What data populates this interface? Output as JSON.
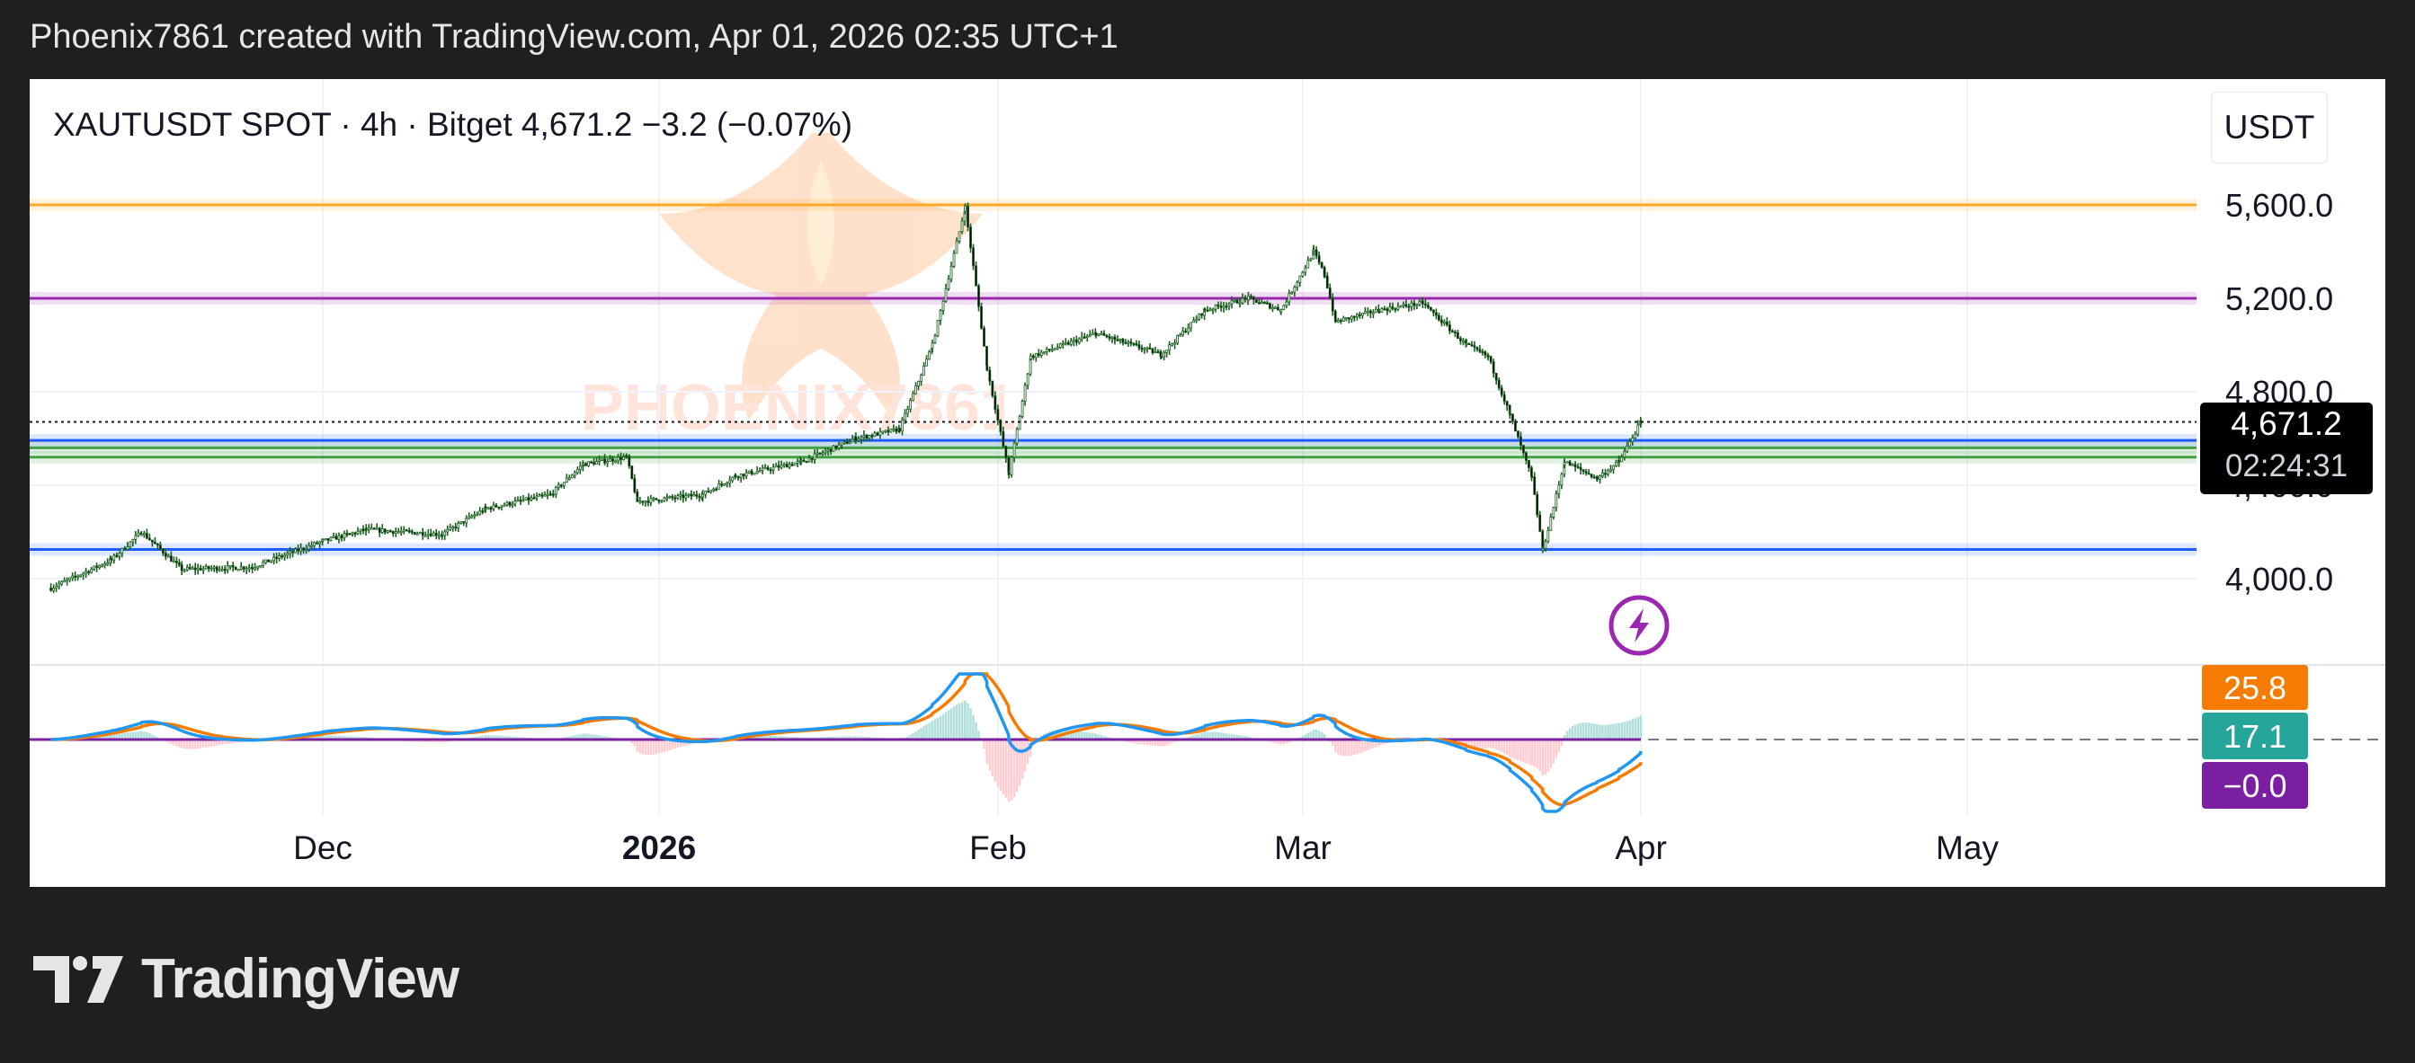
{
  "header": {
    "snapshot_text": "Phoenix7861 created with TradingView.com, Apr 01, 2026 02:35 UTC+1"
  },
  "symbol_bar": {
    "symbol": "XAUTUSDT SPOT",
    "interval": "4h",
    "exchange": "Bitget",
    "last_price": "4,671.2",
    "change": "−3.2",
    "change_pct": "(−0.07%)",
    "text": "XAUTUSDT SPOT · 4h · Bitget  4,671.2  −3.2 (−0.07%)"
  },
  "currency_button": {
    "label": "USDT"
  },
  "watermark": {
    "text": "PHOENIX7861"
  },
  "price_scale": {
    "labels": [
      "5,600.0",
      "5,200.0",
      "4,800.0",
      "4,400.0",
      "4,000.0"
    ],
    "current_price_label": "4,671.2",
    "countdown_label": "02:24:31"
  },
  "time_axis": {
    "labels": [
      {
        "text": "Dec",
        "bold": false
      },
      {
        "text": "2026",
        "bold": true
      },
      {
        "text": "Feb",
        "bold": false
      },
      {
        "text": "Mar",
        "bold": false
      },
      {
        "text": "Apr",
        "bold": false
      },
      {
        "text": "May",
        "bold": false
      }
    ]
  },
  "indicator_badges": [
    {
      "text": "25.8",
      "color": "#f57c00"
    },
    {
      "text": "17.1",
      "color": "#26a69a"
    },
    {
      "text": "−0.0",
      "color": "#7b1fa2"
    }
  ],
  "footer": {
    "brand": "TradingView"
  },
  "colors": {
    "candle": "#1b5e20",
    "orange_level": "#ffa726",
    "purple_level": "#9c27b0",
    "blue_level": "#1e5bff",
    "green_level": "#43a047",
    "macd_blue": "#2196f3",
    "macd_orange": "#f57c00",
    "signal_purple": "#7b1fa2"
  },
  "chart_data": {
    "type": "candlestick",
    "symbol": "XAUTUSDT SPOT",
    "interval": "4h",
    "exchange": "Bitget",
    "y_axis_ticks": [
      5600,
      5200,
      4800,
      4400,
      4000
    ],
    "ylim": [
      3940,
      5700
    ],
    "x_axis_ticks": [
      "Dec",
      "2026",
      "Feb",
      "Mar",
      "Apr",
      "May"
    ],
    "price_path": [
      [
        "Nov 04",
        3960
      ],
      [
        "Nov 10",
        4080
      ],
      [
        "Nov 13",
        4200
      ],
      [
        "Nov 17",
        4040
      ],
      [
        "Nov 24",
        4050
      ],
      [
        "Dec 01",
        4160
      ],
      [
        "Dec 05",
        4210
      ],
      [
        "Dec 12",
        4190
      ],
      [
        "Dec 16",
        4300
      ],
      [
        "Dec 22",
        4360
      ],
      [
        "Dec 25",
        4490
      ],
      [
        "Dec 29",
        4520
      ],
      [
        "Dec 30",
        4330
      ],
      [
        "Jan 05",
        4360
      ],
      [
        "Jan 08",
        4440
      ],
      [
        "Jan 14",
        4500
      ],
      [
        "Jan 19",
        4600
      ],
      [
        "Jan 23",
        4640
      ],
      [
        "Jan 26",
        5000
      ],
      [
        "Jan 29",
        5590
      ],
      [
        "Jan 31",
        4900
      ],
      [
        "Feb 02",
        4450
      ],
      [
        "Feb 04",
        4950
      ],
      [
        "Feb 10",
        5050
      ],
      [
        "Feb 16",
        4960
      ],
      [
        "Feb 20",
        5150
      ],
      [
        "Feb 24",
        5200
      ],
      [
        "Feb 27",
        5150
      ],
      [
        "Mar 02",
        5400
      ],
      [
        "Mar 03",
        5300
      ],
      [
        "Mar 04",
        5100
      ],
      [
        "Mar 08",
        5150
      ],
      [
        "Mar 12",
        5180
      ],
      [
        "Mar 16",
        5000
      ],
      [
        "Mar 18",
        4950
      ],
      [
        "Mar 20",
        4700
      ],
      [
        "Mar 22",
        4430
      ],
      [
        "Mar 23",
        4120
      ],
      [
        "Mar 25",
        4500
      ],
      [
        "Mar 28",
        4430
      ],
      [
        "Mar 30",
        4500
      ],
      [
        "Apr 01",
        4671.2
      ]
    ],
    "horizontal_levels": [
      {
        "price": 5600,
        "color": "orange"
      },
      {
        "price": 5200,
        "color": "purple"
      },
      {
        "price": 4592,
        "color": "blue"
      },
      {
        "price": 4560,
        "color": "green"
      },
      {
        "price": 4520,
        "color": "green"
      },
      {
        "price": 4125,
        "color": "blue"
      }
    ],
    "last_price": 4671.2,
    "indicator": {
      "values": {
        "line_1": 25.8,
        "line_2": 17.1,
        "histogram": -0.0
      },
      "series": [
        {
          "name": "line_1",
          "color": "blue"
        },
        {
          "name": "line_2",
          "color": "orange"
        }
      ]
    }
  }
}
